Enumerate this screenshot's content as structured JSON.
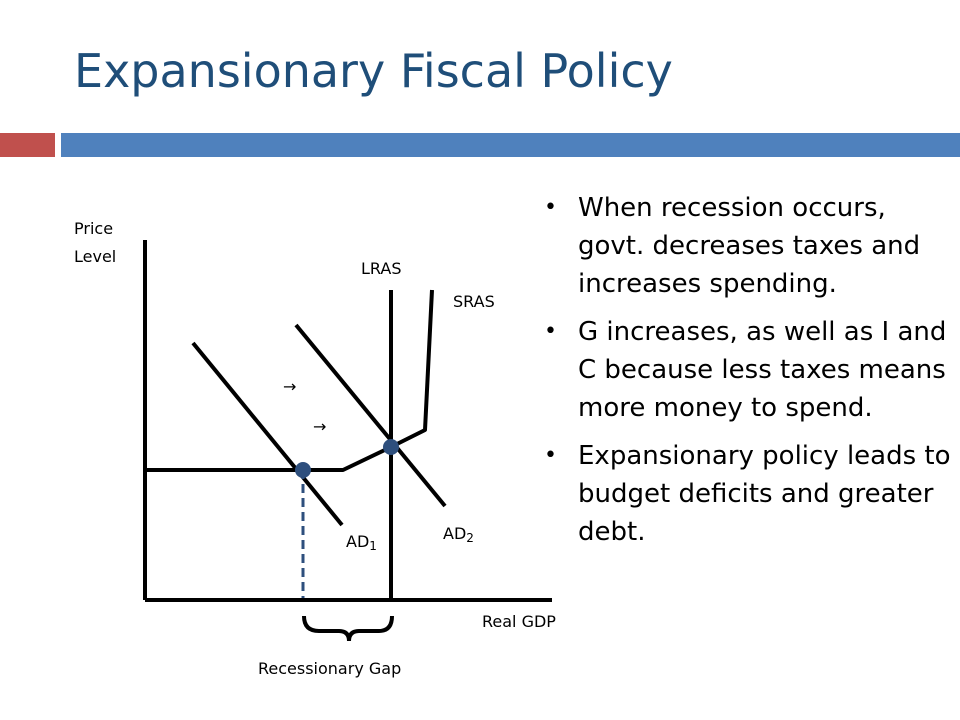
{
  "slide": {
    "title": "Expansionary Fiscal Policy",
    "accent_red": "#c0504d",
    "accent_blue": "#4f81bd",
    "title_color": "#1f4e79"
  },
  "diagram": {
    "y_axis_label_line1": "Price",
    "y_axis_label_line2": "Level",
    "x_axis_label": "Real GDP",
    "lras_label": "LRAS",
    "sras_label": "SRAS",
    "ad1_label": "AD1",
    "ad2_label": "AD2",
    "ad_base": "AD",
    "ad1_sub": "1",
    "ad2_sub": "2",
    "gap_label": "Recessionary Gap",
    "point_color": "#2e4f7d",
    "arrow_glyph": "→"
  },
  "bullets": [
    "When recession occurs, govt. decreases taxes and increases spending.",
    "G increases, as well as I and C because less taxes means more money to spend.",
    "Expansionary policy leads to budget deficits and greater debt."
  ]
}
